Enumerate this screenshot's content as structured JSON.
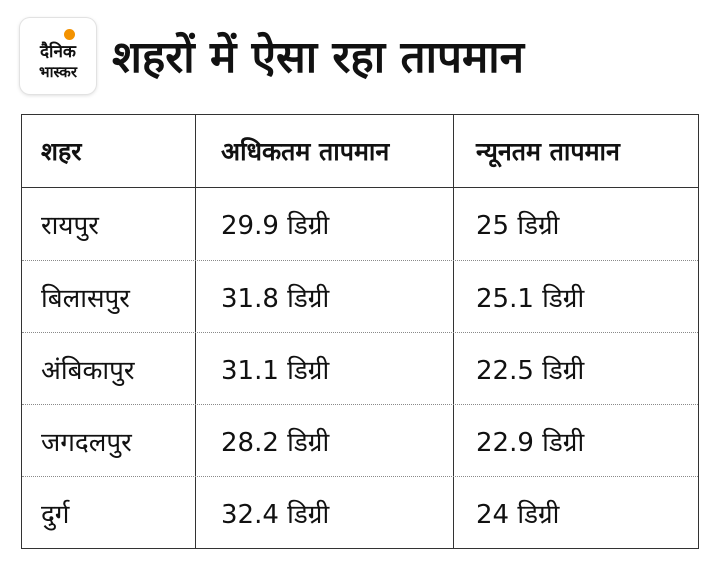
{
  "logo": {
    "line1": "दैनिक",
    "line2": "भास्कर",
    "accent_color": "#f39200"
  },
  "title": "शहरों में ऐसा रहा तापमान",
  "table": {
    "columns": [
      "शहर",
      "अधिकतम तापमान",
      "न्यूनतम तापमान"
    ],
    "rows": [
      [
        "रायपुर",
        "29.9 डिग्री",
        "25 डिग्री"
      ],
      [
        "बिलासपुर",
        "31.8 डिग्री",
        "25.1 डिग्री"
      ],
      [
        "अंबिकापुर",
        "31.1 डिग्री",
        "22.5 डिग्री"
      ],
      [
        "जगदलपुर",
        "28.2 डिग्री",
        "22.9 डिग्री"
      ],
      [
        "दुर्ग",
        "32.4 डिग्री",
        "24 डिग्री"
      ]
    ]
  }
}
